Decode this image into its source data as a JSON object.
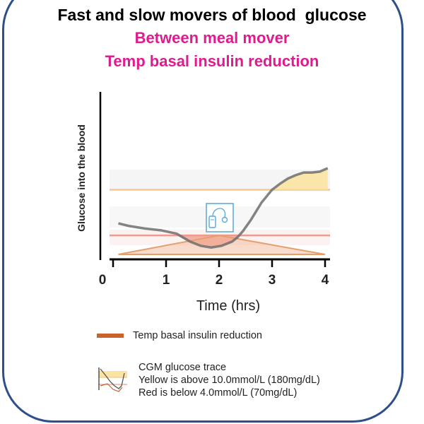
{
  "title": "Fast and slow movers of blood  glucose",
  "subtitle_1": "Between meal mover",
  "subtitle_2": "Temp basal insulin reduction",
  "colors": {
    "frame": "#2f4f8a",
    "subtitle": "#e01a8f",
    "trace": "#6e6e6e",
    "yellow_band": "#fbe3a3",
    "red_band": "#f6b8b0",
    "insulin": "#c8632a",
    "pump_icon": "#5aa6d8"
  },
  "icons": {
    "pump": "insulin-pump-icon",
    "legend_cgm": "cgm-trace-icon"
  },
  "chart_data": {
    "type": "line",
    "xlabel": "Time (hrs)",
    "ylabel": "Glucose into the blood",
    "xlim": [
      0,
      4
    ],
    "x_ticks": [
      "0",
      "1",
      "2",
      "3",
      "4"
    ],
    "x_tick_values": [
      0,
      1,
      2,
      3,
      4
    ],
    "ylim": [
      0,
      1
    ],
    "grid": false,
    "series": [
      {
        "name": "CGM glucose trace",
        "x": [
          0.1,
          0.3,
          0.6,
          0.9,
          1.2,
          1.45,
          1.65,
          1.85,
          2.05,
          2.25,
          2.35,
          2.45,
          2.6,
          2.8,
          3.0,
          3.15,
          3.3,
          3.45,
          3.6,
          3.75,
          3.9,
          4.05
        ],
        "y": [
          0.36,
          0.33,
          0.3,
          0.28,
          0.24,
          0.15,
          0.1,
          0.08,
          0.1,
          0.15,
          0.2,
          0.27,
          0.4,
          0.6,
          0.75,
          0.82,
          0.88,
          0.92,
          0.95,
          0.95,
          0.96,
          1.0
        ]
      },
      {
        "name": "Temp basal insulin reduction",
        "x": [
          0.1,
          2.0,
          4.0
        ],
        "y": [
          0.0,
          0.22,
          0.0
        ]
      }
    ],
    "bands": {
      "yellow_threshold": 0.75,
      "red_threshold": 0.22
    }
  },
  "legend": {
    "insulin_label": "Temp basal insulin reduction",
    "cgm_title": "CGM glucose trace",
    "cgm_yellow": "Yellow is above 10.0mmol/L (180mg/dL)",
    "cgm_red": "Red is below 4.0mmol/L (70mg/dL)"
  }
}
